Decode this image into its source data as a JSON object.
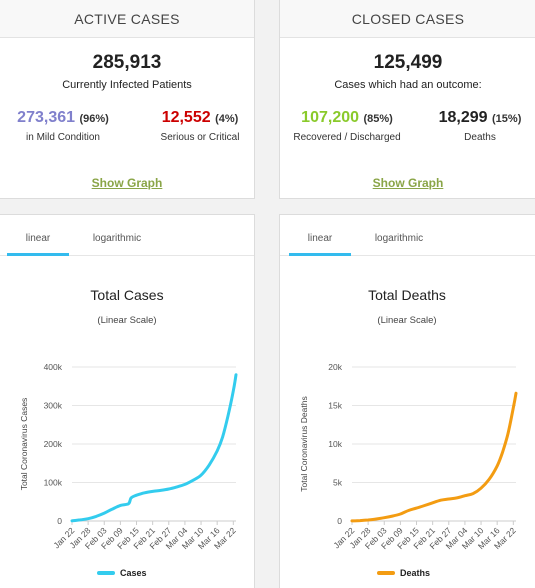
{
  "active": {
    "header": "ACTIVE CASES",
    "total": "285,913",
    "total_label": "Currently Infected Patients",
    "mild_value": "273,361",
    "mild_pct": "(96%)",
    "mild_label": "in Mild Condition",
    "serious_value": "12,552",
    "serious_pct": "(4%)",
    "serious_label": "Serious or Critical",
    "show_graph": "Show Graph"
  },
  "closed": {
    "header": "CLOSED CASES",
    "total": "125,499",
    "total_label": "Cases which had an outcome:",
    "recovered_value": "107,200",
    "recovered_pct": "(85%)",
    "recovered_label": "Recovered / Discharged",
    "deaths_value": "18,299",
    "deaths_pct": "(15%)",
    "deaths_label": "Deaths",
    "show_graph": "Show Graph"
  },
  "colors": {
    "mild": "#8080cc",
    "serious": "#cc0000",
    "recovered": "#8aca2b",
    "link": "#8aa547",
    "cases_line": "#33ccee",
    "deaths_line": "#f39c12"
  },
  "tabs": {
    "linear": "linear",
    "logarithmic": "logarithmic",
    "active": "linear"
  },
  "chart_data": [
    {
      "type": "line",
      "title": "Total Cases",
      "subtitle": "(Linear Scale)",
      "ylabel": "Total Coronavirus Cases",
      "ylim": [
        0,
        400000
      ],
      "yticks": [
        "0",
        "100k",
        "200k",
        "300k",
        "400k"
      ],
      "tick_labels": [
        "Jan 22",
        "Jan 28",
        "Feb 03",
        "Feb 09",
        "Feb 15",
        "Feb 21",
        "Feb 27",
        "Mar 04",
        "Mar 10",
        "Mar 16",
        "Mar 22"
      ],
      "grid": true,
      "legend_position": "bottom",
      "series": [
        {
          "name": "Cases",
          "x": [
            "Jan 22",
            "Jan 25",
            "Jan 28",
            "Jan 31",
            "Feb 03",
            "Feb 06",
            "Feb 09",
            "Feb 12",
            "Feb 13",
            "Feb 15",
            "Feb 18",
            "Feb 21",
            "Feb 24",
            "Feb 27",
            "Mar 01",
            "Mar 04",
            "Mar 07",
            "Mar 10",
            "Mar 13",
            "Mar 16",
            "Mar 18",
            "Mar 20",
            "Mar 22",
            "Mar 23"
          ],
          "values": [
            580,
            2900,
            6000,
            12000,
            20600,
            31000,
            40500,
            45000,
            60000,
            67000,
            73300,
            76800,
            79500,
            83000,
            88500,
            95000,
            105800,
            119000,
            145000,
            182000,
            218000,
            272000,
            338000,
            380000
          ]
        }
      ]
    },
    {
      "type": "line",
      "title": "Total Deaths",
      "subtitle": "(Linear Scale)",
      "ylabel": "Total Coronavirus Deaths",
      "ylim": [
        0,
        20000
      ],
      "yticks": [
        "0",
        "5k",
        "10k",
        "15k",
        "20k"
      ],
      "tick_labels": [
        "Jan 22",
        "Jan 28",
        "Feb 03",
        "Feb 09",
        "Feb 15",
        "Feb 21",
        "Feb 27",
        "Mar 04",
        "Mar 10",
        "Mar 16",
        "Mar 22"
      ],
      "grid": true,
      "legend_position": "bottom",
      "series": [
        {
          "name": "Deaths",
          "x": [
            "Jan 22",
            "Jan 25",
            "Jan 28",
            "Jan 31",
            "Feb 03",
            "Feb 06",
            "Feb 09",
            "Feb 12",
            "Feb 15",
            "Feb 18",
            "Feb 21",
            "Feb 24",
            "Feb 27",
            "Mar 01",
            "Mar 04",
            "Mar 07",
            "Mar 10",
            "Mar 13",
            "Mar 16",
            "Mar 18",
            "Mar 20",
            "Mar 22",
            "Mar 23"
          ],
          "values": [
            17,
            56,
            132,
            259,
            427,
            638,
            910,
            1370,
            1670,
            2010,
            2360,
            2700,
            2860,
            3000,
            3280,
            3560,
            4260,
            5400,
            7150,
            8950,
            11300,
            14700,
            16600
          ]
        }
      ]
    }
  ]
}
